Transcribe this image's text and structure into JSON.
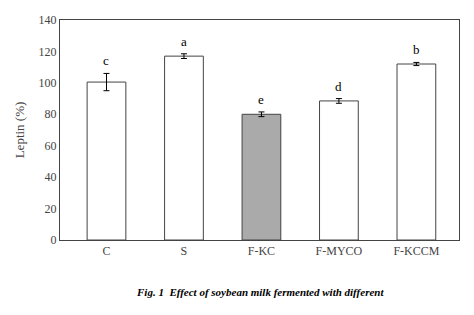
{
  "chart_data": {
    "type": "bar",
    "categories": [
      "C",
      "S",
      "F-KC",
      "F-MYCO",
      "F-KCCM"
    ],
    "values": [
      100.5,
      117.0,
      80.0,
      88.5,
      112.0
    ],
    "errors": [
      5.5,
      1.5,
      1.5,
      1.5,
      1.0
    ],
    "colors": [
      "white",
      "white",
      "#aaaaaa",
      "white",
      "white"
    ],
    "annotations": [
      {
        "x": "C",
        "text": "c"
      },
      {
        "x": "S",
        "text": "a"
      },
      {
        "x": "F-KC",
        "text": "e"
      },
      {
        "x": "F-MYCO",
        "text": "d"
      },
      {
        "x": "F-KCCM",
        "text": "b"
      }
    ],
    "ylabel": "Leptin (%)",
    "caption": "Fig. 1  Effect of soybean milk fermented with different",
    "ylim": [
      0,
      140
    ],
    "yticks": [
      0,
      20,
      40,
      60,
      80,
      100,
      120,
      140
    ],
    "grid": false
  }
}
